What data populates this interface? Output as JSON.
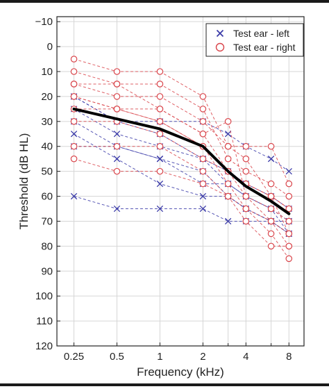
{
  "chart_data": {
    "type": "line",
    "xlabel": "Frequency (kHz)",
    "ylabel": "Threshold (dB HL)",
    "x_scale": "log",
    "y_inverted": true,
    "xlim": [
      0.19,
      10.2
    ],
    "ylim": [
      -12,
      120
    ],
    "x_ticks": [
      0.25,
      0.5,
      1,
      2,
      4,
      8
    ],
    "x_tick_labels": [
      "0.25",
      "0.5",
      "1",
      "2",
      "4",
      "8"
    ],
    "x_minor_ticks": [
      3,
      6
    ],
    "y_ticks": [
      -10,
      0,
      10,
      20,
      30,
      40,
      50,
      60,
      70,
      80,
      90,
      100,
      110,
      120
    ],
    "y_tick_labels": [
      "−10",
      "0",
      "10",
      "20",
      "30",
      "40",
      "50",
      "60",
      "70",
      "80",
      "90",
      "100",
      "110",
      "120"
    ],
    "grid": true,
    "legend_position": "top-right",
    "legend": [
      {
        "label": "Test ear - left",
        "marker": "x",
        "color": "#3a3aa8"
      },
      {
        "label": "Test ear - right",
        "marker": "o",
        "color": "#d9444a"
      }
    ],
    "frequencies": [
      0.25,
      0.5,
      1,
      2,
      3,
      4,
      6,
      8
    ],
    "series_left": [
      {
        "values": [
          20,
          30,
          35,
          45,
          55,
          60,
          65,
          75
        ]
      },
      {
        "values": [
          30,
          40,
          45,
          50,
          60,
          65,
          70,
          75
        ]
      },
      {
        "values": [
          35,
          45,
          55,
          60,
          60,
          65,
          70,
          70
        ]
      },
      {
        "values": [
          25,
          35,
          40,
          45,
          50,
          55,
          60,
          65
        ]
      },
      {
        "values": [
          60,
          65,
          65,
          65,
          70,
          70,
          70,
          75
        ]
      },
      {
        "values": [
          20,
          30,
          30,
          30,
          35,
          40,
          45,
          50
        ]
      },
      {
        "values": [
          40,
          40,
          45,
          55,
          55,
          60,
          65,
          70
        ]
      }
    ],
    "series_right": [
      {
        "values": [
          5,
          10,
          10,
          20,
          40,
          45,
          60,
          75
        ]
      },
      {
        "values": [
          10,
          15,
          15,
          25,
          45,
          50,
          55,
          60
        ]
      },
      {
        "values": [
          15,
          20,
          20,
          30,
          40,
          40,
          40,
          55
        ]
      },
      {
        "values": [
          20,
          25,
          25,
          35,
          50,
          60,
          70,
          80
        ]
      },
      {
        "values": [
          25,
          25,
          30,
          40,
          55,
          65,
          75,
          85
        ]
      },
      {
        "values": [
          30,
          30,
          35,
          45,
          50,
          55,
          60,
          65
        ]
      },
      {
        "values": [
          40,
          40,
          40,
          50,
          60,
          65,
          70,
          75
        ]
      },
      {
        "values": [
          45,
          50,
          50,
          55,
          60,
          70,
          80,
          80
        ]
      },
      {
        "values": [
          15,
          15,
          25,
          35,
          30,
          60,
          65,
          70
        ]
      },
      {
        "values": [
          20,
          25,
          30,
          40,
          50,
          55,
          60,
          65
        ]
      }
    ],
    "mean": {
      "x": [
        0.25,
        0.5,
        1,
        2,
        3,
        4,
        6,
        8
      ],
      "values": [
        25,
        29,
        33,
        40,
        50,
        56,
        62,
        67
      ],
      "color": "#000000"
    }
  }
}
